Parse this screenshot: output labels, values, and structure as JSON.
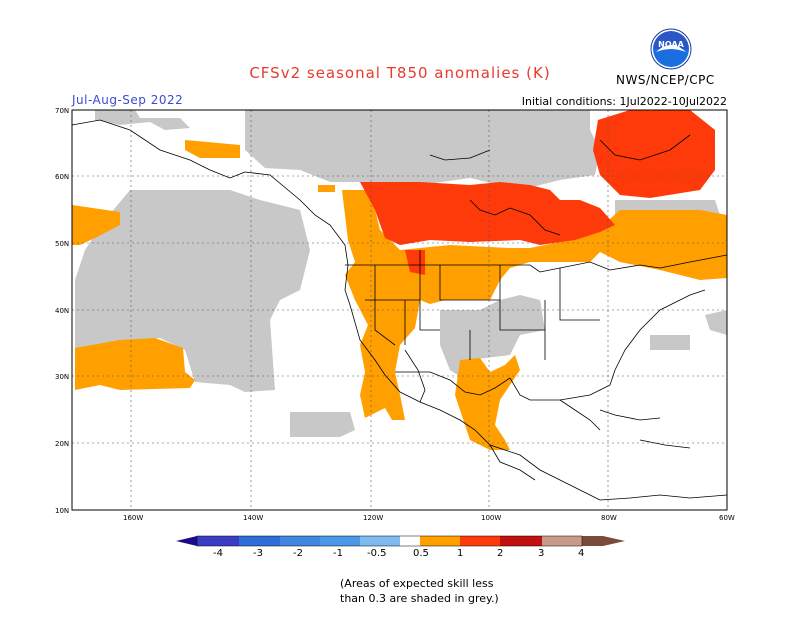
{
  "title": "CFSv2 seasonal T850 anomalies (K)",
  "period": "Jul-Aug-Sep 2022",
  "initial_conditions": "Initial conditions: 1Jul2022-10Jul2022",
  "agency": "NWS/NCEP/CPC",
  "logo_text": "NOAA",
  "lat_labels": [
    "70N",
    "60N",
    "50N",
    "40N",
    "30N",
    "20N",
    "10N"
  ],
  "lon_labels": [
    "160W",
    "140W",
    "120W",
    "100W",
    "80W",
    "60W"
  ],
  "colorbar": {
    "labels": [
      "-4",
      "-3",
      "-2",
      "-1",
      "-0.5",
      "0.5",
      "1",
      "2",
      "3",
      "4"
    ],
    "colors": [
      "#1c0a8a",
      "#3a3dc4",
      "#2f6ed8",
      "#4a98e6",
      "#7dbaf0",
      "#ffffff",
      "#ff9f00",
      "#ff3a0a",
      "#c01010",
      "#8a0a0a",
      "#c89a8a",
      "#7a4a3a"
    ]
  },
  "legend_colors": {
    "grey_low_skill": "#c8c8c8",
    "anomaly_0_5_to_1": "#ff9f00",
    "anomaly_1_to_2": "#ff3a0a"
  },
  "note_lines": [
    "(Areas of expected skill less",
    "than 0.3 are shaded in grey.)"
  ]
}
